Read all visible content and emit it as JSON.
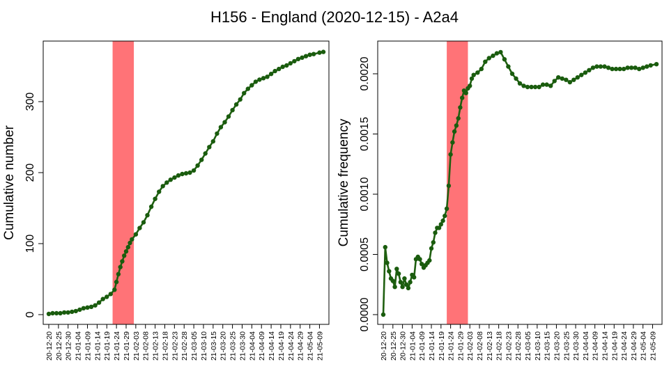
{
  "figure": {
    "title": "H156 - England (2020-12-15) - A2a4"
  },
  "colors": {
    "line": "#1f5f10",
    "point": "#1a5c0e",
    "shade": "#ff7377",
    "axis": "#000000"
  },
  "chart_data": [
    {
      "type": "line",
      "title": "",
      "xlabel": "",
      "ylabel": "Cumulative number",
      "ylim": [
        0,
        375
      ],
      "yticks": [
        0,
        100,
        200,
        300
      ],
      "ytick_labels": [
        "0",
        "100",
        "200",
        "300"
      ],
      "x_start": "2020-12-20",
      "x_end": "2021-05-11",
      "xtick_labels": [
        "20-12-20",
        "20-12-25",
        "20-12-30",
        "21-01-04",
        "21-01-09",
        "21-01-14",
        "21-01-19",
        "21-01-24",
        "21-01-29",
        "21-02-03",
        "21-02-08",
        "21-02-13",
        "21-02-18",
        "21-02-23",
        "21-02-28",
        "21-03-05",
        "21-03-10",
        "21-03-15",
        "21-03-20",
        "21-03-25",
        "21-03-30",
        "21-04-04",
        "21-04-09",
        "21-04-14",
        "21-04-19",
        "21-04-24",
        "21-04-29",
        "21-05-04",
        "21-05-09"
      ],
      "highlight_range": [
        "2021-01-22",
        "2021-02-02"
      ],
      "series": [
        {
          "points": [
            [
              "2020-12-20",
              1
            ],
            [
              "2020-12-22",
              2
            ],
            [
              "2020-12-24",
              2
            ],
            [
              "2020-12-26",
              2
            ],
            [
              "2020-12-28",
              3
            ],
            [
              "2020-12-30",
              3
            ],
            [
              "2021-01-01",
              4
            ],
            [
              "2021-01-03",
              5
            ],
            [
              "2021-01-05",
              7
            ],
            [
              "2021-01-07",
              9
            ],
            [
              "2021-01-09",
              10
            ],
            [
              "2021-01-11",
              11
            ],
            [
              "2021-01-13",
              13
            ],
            [
              "2021-01-15",
              17
            ],
            [
              "2021-01-17",
              22
            ],
            [
              "2021-01-19",
              25
            ],
            [
              "2021-01-21",
              29
            ],
            [
              "2021-01-23",
              35
            ],
            [
              "2021-01-24",
              46
            ],
            [
              "2021-01-25",
              57
            ],
            [
              "2021-01-26",
              67
            ],
            [
              "2021-01-27",
              75
            ],
            [
              "2021-01-28",
              83
            ],
            [
              "2021-01-29",
              89
            ],
            [
              "2021-01-30",
              95
            ],
            [
              "2021-01-31",
              101
            ],
            [
              "2021-02-01",
              106
            ],
            [
              "2021-02-03",
              113
            ],
            [
              "2021-02-05",
              122
            ],
            [
              "2021-02-07",
              130
            ],
            [
              "2021-02-09",
              140
            ],
            [
              "2021-02-11",
              152
            ],
            [
              "2021-02-13",
              163
            ],
            [
              "2021-02-15",
              173
            ],
            [
              "2021-02-17",
              181
            ],
            [
              "2021-02-19",
              186
            ],
            [
              "2021-02-21",
              190
            ],
            [
              "2021-02-23",
              193
            ],
            [
              "2021-02-25",
              196
            ],
            [
              "2021-02-27",
              198
            ],
            [
              "2021-03-01",
              199
            ],
            [
              "2021-03-03",
              200
            ],
            [
              "2021-03-05",
              203
            ],
            [
              "2021-03-07",
              210
            ],
            [
              "2021-03-09",
              218
            ],
            [
              "2021-03-11",
              227
            ],
            [
              "2021-03-13",
              236
            ],
            [
              "2021-03-15",
              244
            ],
            [
              "2021-03-17",
              255
            ],
            [
              "2021-03-19",
              264
            ],
            [
              "2021-03-21",
              271
            ],
            [
              "2021-03-23",
              279
            ],
            [
              "2021-03-25",
              288
            ],
            [
              "2021-03-27",
              296
            ],
            [
              "2021-03-29",
              303
            ],
            [
              "2021-03-31",
              312
            ],
            [
              "2021-04-02",
              318
            ],
            [
              "2021-04-04",
              323
            ],
            [
              "2021-04-06",
              328
            ],
            [
              "2021-04-08",
              331
            ],
            [
              "2021-04-10",
              333
            ],
            [
              "2021-04-12",
              335
            ],
            [
              "2021-04-14",
              339
            ],
            [
              "2021-04-16",
              343
            ],
            [
              "2021-04-18",
              346
            ],
            [
              "2021-04-20",
              349
            ],
            [
              "2021-04-22",
              351
            ],
            [
              "2021-04-24",
              354
            ],
            [
              "2021-04-26",
              357
            ],
            [
              "2021-04-28",
              360
            ],
            [
              "2021-04-30",
              362
            ],
            [
              "2021-05-02",
              364
            ],
            [
              "2021-05-04",
              366
            ],
            [
              "2021-05-06",
              367
            ],
            [
              "2021-05-09",
              369
            ],
            [
              "2021-05-11",
              370
            ]
          ]
        }
      ]
    },
    {
      "type": "line",
      "title": "",
      "xlabel": "",
      "ylabel": "Cumulative frequency",
      "ylim": [
        0,
        0.00225
      ],
      "yticks": [
        0,
        0.0005,
        0.001,
        0.0015,
        0.002
      ],
      "ytick_labels": [
        "0.0000",
        "0.0005",
        "0.0010",
        "0.0015",
        "0.0020"
      ],
      "x_start": "2020-12-20",
      "x_end": "2021-05-11",
      "xtick_labels": [
        "20-12-20",
        "20-12-25",
        "20-12-30",
        "21-01-04",
        "21-01-09",
        "21-01-14",
        "21-01-19",
        "21-01-24",
        "21-01-29",
        "21-02-03",
        "21-02-08",
        "21-02-13",
        "21-02-18",
        "21-02-23",
        "21-02-28",
        "21-03-05",
        "21-03-10",
        "21-03-15",
        "21-03-20",
        "21-03-25",
        "21-03-30",
        "21-04-04",
        "21-04-09",
        "21-04-14",
        "21-04-19",
        "21-04-24",
        "21-04-29",
        "21-05-04",
        "21-05-09"
      ],
      "highlight_range": [
        "2021-01-22",
        "2021-02-02"
      ],
      "series": [
        {
          "points": [
            [
              "2020-12-20",
              0.0
            ],
            [
              "2020-12-21",
              0.00056
            ],
            [
              "2020-12-22",
              0.00043
            ],
            [
              "2020-12-23",
              0.00036
            ],
            [
              "2020-12-24",
              0.0003
            ],
            [
              "2020-12-25",
              0.00028
            ],
            [
              "2020-12-26",
              0.00023
            ],
            [
              "2020-12-27",
              0.00038
            ],
            [
              "2020-12-28",
              0.00034
            ],
            [
              "2020-12-29",
              0.00027
            ],
            [
              "2020-12-30",
              0.00023
            ],
            [
              "2020-12-31",
              0.0003
            ],
            [
              "2021-01-01",
              0.00025
            ],
            [
              "2021-01-02",
              0.00022
            ],
            [
              "2021-01-03",
              0.00027
            ],
            [
              "2021-01-04",
              0.00033
            ],
            [
              "2021-01-05",
              0.00031
            ],
            [
              "2021-01-06",
              0.00046
            ],
            [
              "2021-01-07",
              0.00048
            ],
            [
              "2021-01-08",
              0.00046
            ],
            [
              "2021-01-09",
              0.00042
            ],
            [
              "2021-01-10",
              0.00039
            ],
            [
              "2021-01-11",
              0.00041
            ],
            [
              "2021-01-12",
              0.00043
            ],
            [
              "2021-01-13",
              0.00045
            ],
            [
              "2021-01-14",
              0.00055
            ],
            [
              "2021-01-15",
              0.0006
            ],
            [
              "2021-01-16",
              0.00068
            ],
            [
              "2021-01-17",
              0.00072
            ],
            [
              "2021-01-18",
              0.00072
            ],
            [
              "2021-01-19",
              0.00075
            ],
            [
              "2021-01-20",
              0.00078
            ],
            [
              "2021-01-21",
              0.00082
            ],
            [
              "2021-01-22",
              0.00088
            ],
            [
              "2021-01-23",
              0.00107
            ],
            [
              "2021-01-24",
              0.00133
            ],
            [
              "2021-01-25",
              0.00143
            ],
            [
              "2021-01-26",
              0.00152
            ],
            [
              "2021-01-27",
              0.00157
            ],
            [
              "2021-01-28",
              0.00163
            ],
            [
              "2021-01-29",
              0.00172
            ],
            [
              "2021-01-30",
              0.0018
            ],
            [
              "2021-01-31",
              0.00186
            ],
            [
              "2021-02-01",
              0.00184
            ],
            [
              "2021-02-02",
              0.00188
            ],
            [
              "2021-02-03",
              0.0019
            ],
            [
              "2021-02-04",
              0.00196
            ],
            [
              "2021-02-05",
              0.00199
            ],
            [
              "2021-02-07",
              0.00201
            ],
            [
              "2021-02-09",
              0.00204
            ],
            [
              "2021-02-11",
              0.0021
            ],
            [
              "2021-02-13",
              0.00213
            ],
            [
              "2021-02-15",
              0.00215
            ],
            [
              "2021-02-17",
              0.00217
            ],
            [
              "2021-02-19",
              0.00218
            ],
            [
              "2021-02-21",
              0.00212
            ],
            [
              "2021-02-23",
              0.00206
            ],
            [
              "2021-02-25",
              0.002
            ],
            [
              "2021-02-27",
              0.00196
            ],
            [
              "2021-03-01",
              0.00192
            ],
            [
              "2021-03-03",
              0.0019
            ],
            [
              "2021-03-05",
              0.00189
            ],
            [
              "2021-03-07",
              0.00189
            ],
            [
              "2021-03-09",
              0.00189
            ],
            [
              "2021-03-11",
              0.00189
            ],
            [
              "2021-03-13",
              0.00191
            ],
            [
              "2021-03-15",
              0.00191
            ],
            [
              "2021-03-17",
              0.0019
            ],
            [
              "2021-03-19",
              0.00194
            ],
            [
              "2021-03-21",
              0.00197
            ],
            [
              "2021-03-23",
              0.00196
            ],
            [
              "2021-03-25",
              0.00195
            ],
            [
              "2021-03-27",
              0.00193
            ],
            [
              "2021-03-29",
              0.00195
            ],
            [
              "2021-03-31",
              0.00197
            ],
            [
              "2021-04-02",
              0.00199
            ],
            [
              "2021-04-04",
              0.00201
            ],
            [
              "2021-04-06",
              0.00203
            ],
            [
              "2021-04-08",
              0.00205
            ],
            [
              "2021-04-10",
              0.00206
            ],
            [
              "2021-04-12",
              0.00206
            ],
            [
              "2021-04-14",
              0.00206
            ],
            [
              "2021-04-16",
              0.00205
            ],
            [
              "2021-04-18",
              0.00204
            ],
            [
              "2021-04-20",
              0.00204
            ],
            [
              "2021-04-22",
              0.00204
            ],
            [
              "2021-04-24",
              0.00204
            ],
            [
              "2021-04-26",
              0.00205
            ],
            [
              "2021-04-28",
              0.00205
            ],
            [
              "2021-04-30",
              0.00205
            ],
            [
              "2021-05-02",
              0.00204
            ],
            [
              "2021-05-04",
              0.00205
            ],
            [
              "2021-05-06",
              0.00206
            ],
            [
              "2021-05-08",
              0.00207
            ],
            [
              "2021-05-11",
              0.00208
            ]
          ]
        }
      ]
    }
  ]
}
